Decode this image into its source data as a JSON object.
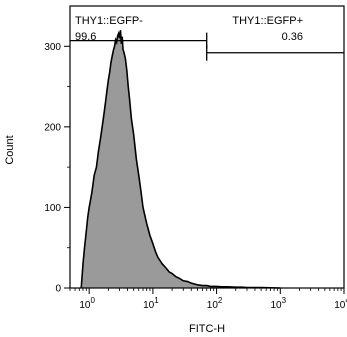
{
  "chart_data": {
    "type": "area",
    "xlabel": "FITC-H",
    "ylabel": "Count",
    "xscale": "log",
    "xlim": [
      0.5,
      10000
    ],
    "ylim": [
      0,
      350
    ],
    "x_ticks": [
      {
        "base": "10",
        "exp": "0",
        "value": 1
      },
      {
        "base": "10",
        "exp": "1",
        "value": 10
      },
      {
        "base": "10",
        "exp": "2",
        "value": 100
      },
      {
        "base": "10",
        "exp": "3",
        "value": 1000
      },
      {
        "base": "10",
        "exp": "4",
        "value": 10000
      }
    ],
    "y_ticks": [
      {
        "label": "0",
        "value": 0
      },
      {
        "label": "100",
        "value": 100
      },
      {
        "label": "200",
        "value": 200
      },
      {
        "label": "300",
        "value": 300
      }
    ],
    "fill_color": "#9a9a9a",
    "line_color": "#000000",
    "series": [
      {
        "x": [
          0.75,
          0.8,
          0.85,
          0.9,
          0.95,
          1.0,
          1.1,
          1.2,
          1.3,
          1.4,
          1.5,
          1.6,
          1.7,
          1.8,
          1.9,
          2.0,
          2.1,
          2.2,
          2.3,
          2.4,
          2.5,
          2.6,
          2.7,
          2.8,
          2.9,
          3.0,
          3.1,
          3.2,
          3.3,
          3.4,
          3.5,
          3.7,
          3.9,
          4.1,
          4.3,
          4.6,
          5.0,
          5.5,
          6.0,
          6.5,
          7.0,
          8.0,
          9.0,
          10,
          11,
          12,
          14,
          16,
          18,
          20,
          23,
          26,
          30,
          35,
          40,
          45,
          50,
          60,
          70,
          80,
          100,
          120,
          150,
          200,
          250,
          300,
          400,
          500,
          700,
          1000
        ],
        "y": [
          0,
          30,
          52,
          70,
          88,
          100,
          118,
          140,
          150,
          170,
          185,
          200,
          215,
          230,
          245,
          258,
          268,
          280,
          288,
          295,
          300,
          308,
          305,
          313,
          316,
          310,
          320,
          303,
          312,
          296,
          293,
          285,
          270,
          250,
          235,
          210,
          190,
          160,
          140,
          120,
          100,
          80,
          65,
          55,
          45,
          38,
          30,
          25,
          20,
          18,
          14,
          12,
          9,
          8,
          6,
          5,
          4,
          3,
          3,
          2,
          2,
          1.5,
          1.5,
          1,
          1,
          0.5,
          0.5,
          0.5,
          0.3,
          0
        ]
      }
    ],
    "gates": [
      {
        "name": "THY1::EGFP-",
        "value": "99.6",
        "x_range": [
          0.5,
          70
        ],
        "y": 307
      },
      {
        "name": "THY1::EGFP+",
        "value": "0.36",
        "x_range": [
          70,
          10000
        ],
        "y": 292
      }
    ]
  }
}
